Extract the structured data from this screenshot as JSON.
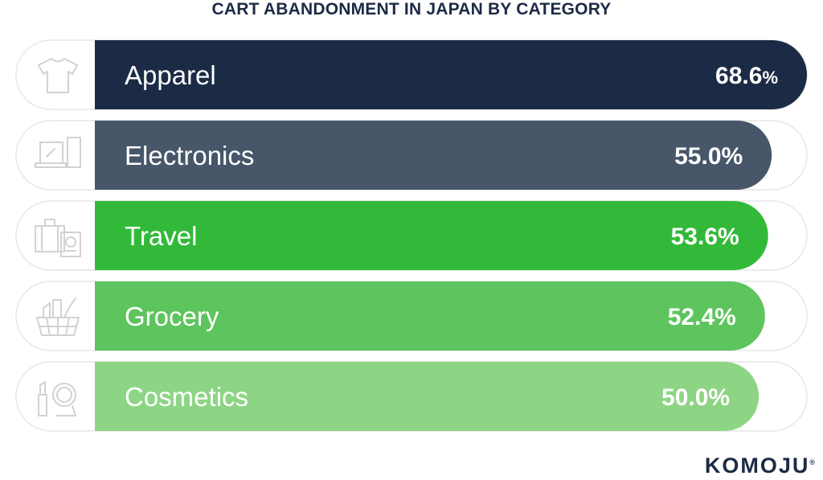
{
  "chart_data": {
    "type": "bar",
    "orientation": "horizontal",
    "title": "CART ABANDONMENT IN JAPAN BY CATEGORY",
    "categories": [
      "Apparel",
      "Electronics",
      "Travel",
      "Grocery",
      "Cosmetics"
    ],
    "values": [
      68.6,
      55.0,
      53.6,
      52.4,
      50.0
    ],
    "value_labels": [
      "68.6",
      "55.0",
      "53.6",
      "52.4",
      "50.0"
    ],
    "unit": "%",
    "icons": [
      "t-shirt-icon",
      "laptop-phone-icon",
      "suitcase-passport-icon",
      "grocery-basket-icon",
      "cosmetics-icon"
    ],
    "colors": [
      "#1c2b45",
      "#475669",
      "#33b939",
      "#5ec45e",
      "#8dd585"
    ],
    "xlim": [
      0,
      100
    ],
    "grid": false,
    "legend": "none"
  },
  "brand": {
    "logo_text": "KOMOJU",
    "logo_mark": "®"
  }
}
